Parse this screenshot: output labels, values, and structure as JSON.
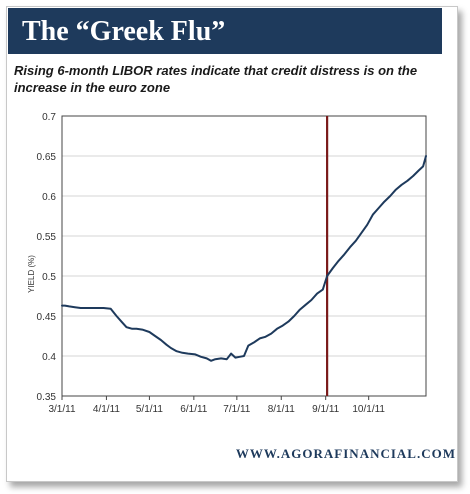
{
  "header": {
    "title": "The “Greek Flu”",
    "subtitle": "Rising 6-month LIBOR rates indicate that credit distress is on the increase in the euro zone"
  },
  "footer": {
    "source": "WWW.AGORAFINANCIAL.COM"
  },
  "colors": {
    "banner": "#1e3a5c",
    "line": "#1e3a5c",
    "marker": "#7a1a1a"
  },
  "chart_data": {
    "type": "line",
    "title": "",
    "xlabel": "",
    "ylabel": "YIELD (%)",
    "ylim": [
      0.35,
      0.7
    ],
    "grid": true,
    "y_ticks": [
      "0.35",
      "0.4",
      "0.45",
      "0.5",
      "0.55",
      "0.6",
      "0.65",
      "0.7"
    ],
    "x_ticks": [
      "3/1/11",
      "4/1/11",
      "5/1/11",
      "6/1/11",
      "7/1/11",
      "8/1/11",
      "9/1/11",
      "10/1/11"
    ],
    "vertical_marker_date": "2011-09-02",
    "series": [
      {
        "x": [
          "2011-03-01",
          "2011-03-03",
          "2011-03-06",
          "2011-03-10",
          "2011-03-14",
          "2011-03-18",
          "2011-03-22",
          "2011-03-26",
          "2011-03-30",
          "2011-04-04",
          "2011-04-08",
          "2011-04-12",
          "2011-04-15",
          "2011-04-19",
          "2011-04-22",
          "2011-04-26",
          "2011-05-01",
          "2011-05-05",
          "2011-05-09",
          "2011-05-13",
          "2011-05-16",
          "2011-05-20",
          "2011-05-24",
          "2011-05-28",
          "2011-06-02",
          "2011-06-06",
          "2011-06-10",
          "2011-06-13",
          "2011-06-16",
          "2011-06-20",
          "2011-06-24",
          "2011-06-27",
          "2011-06-30",
          "2011-07-03",
          "2011-07-06",
          "2011-07-09",
          "2011-07-13",
          "2011-07-17",
          "2011-07-21",
          "2011-07-25",
          "2011-07-29",
          "2011-08-02",
          "2011-08-06",
          "2011-08-10",
          "2011-08-14",
          "2011-08-18",
          "2011-08-22",
          "2011-08-26",
          "2011-08-30",
          "2011-09-02",
          "2011-09-06",
          "2011-09-10",
          "2011-09-14",
          "2011-09-18",
          "2011-09-22",
          "2011-09-26",
          "2011-09-30",
          "2011-10-04",
          "2011-10-08",
          "2011-10-12",
          "2011-10-16",
          "2011-10-20",
          "2011-10-24",
          "2011-10-28",
          "2011-11-01",
          "2011-11-05",
          "2011-11-08",
          "2011-11-10"
        ],
        "y": [
          0.463,
          0.463,
          0.462,
          0.461,
          0.46,
          0.46,
          0.46,
          0.46,
          0.46,
          0.459,
          0.45,
          0.442,
          0.436,
          0.434,
          0.434,
          0.433,
          0.43,
          0.425,
          0.42,
          0.414,
          0.41,
          0.406,
          0.404,
          0.403,
          0.402,
          0.399,
          0.397,
          0.394,
          0.396,
          0.397,
          0.396,
          0.403,
          0.398,
          0.399,
          0.4,
          0.413,
          0.417,
          0.422,
          0.424,
          0.428,
          0.434,
          0.438,
          0.443,
          0.45,
          0.458,
          0.464,
          0.47,
          0.478,
          0.483,
          0.5,
          0.51,
          0.519,
          0.527,
          0.536,
          0.544,
          0.554,
          0.564,
          0.577,
          0.585,
          0.593,
          0.6,
          0.608,
          0.614,
          0.619,
          0.625,
          0.632,
          0.637,
          0.65
        ]
      }
    ]
  }
}
